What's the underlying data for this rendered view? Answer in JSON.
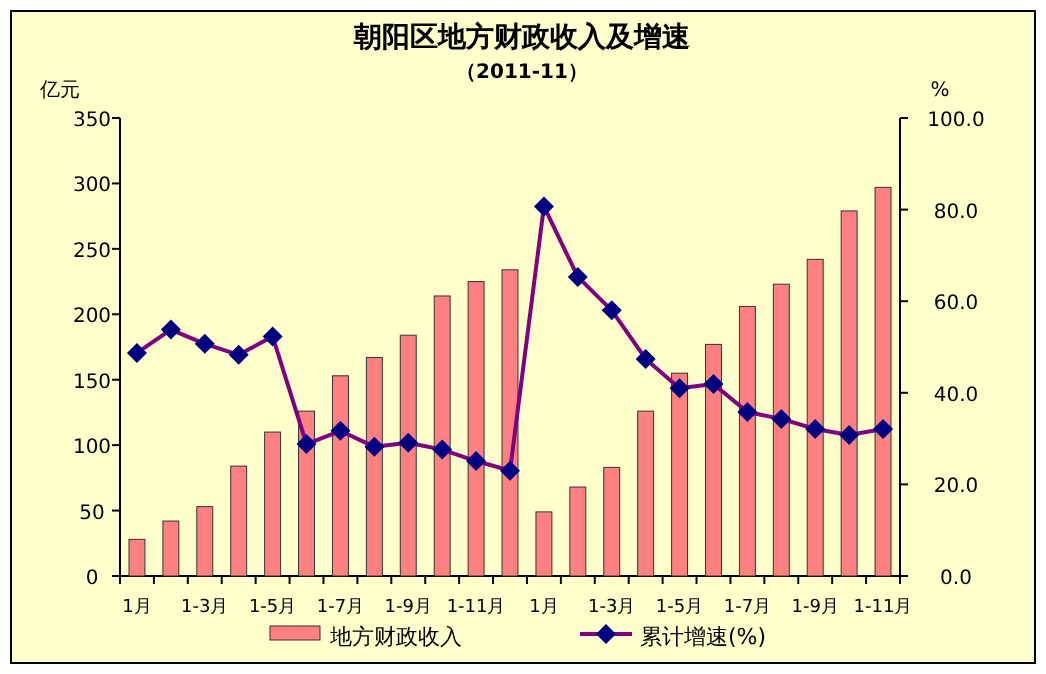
{
  "chart_data": {
    "type": "bar",
    "title": "朝阳区地方财政收入及增速",
    "subtitle": "（2011-11）",
    "ylabel": "亿元",
    "y2label": "%",
    "categories": [
      "1月",
      null,
      "1-3月",
      null,
      "1-5月",
      null,
      "1-7月",
      null,
      "1-9月",
      null,
      "1-11月",
      null,
      "1月",
      null,
      "1-3月",
      null,
      "1-5月",
      null,
      "1-7月",
      null,
      "1-9月",
      null,
      "1-11月"
    ],
    "series": [
      {
        "name": "地方财政收入",
        "color": "#ff8080",
        "values": [
          28,
          42,
          53,
          84,
          110,
          126,
          153,
          167,
          184,
          214,
          225,
          234,
          49,
          68,
          83,
          126,
          155,
          177,
          206,
          223,
          242,
          279,
          297
        ]
      },
      {
        "name": "累计增速(%)",
        "type": "line",
        "axis": "y2",
        "color": "#800080",
        "values": [
          48.7,
          53.8,
          50.7,
          48.3,
          52.3,
          28.8,
          31.7,
          28.2,
          29.1,
          27.6,
          25.1,
          23.0,
          80.7,
          65.3,
          58.0,
          47.4,
          41.0,
          41.9,
          35.8,
          34.3,
          32.1,
          30.8,
          32.1
        ]
      }
    ],
    "ylim": [
      0,
      350
    ],
    "yticks": [
      0,
      50,
      100,
      150,
      200,
      250,
      300,
      350
    ],
    "y2lim": [
      0,
      100
    ],
    "y2ticks": [
      {
        "value": 0,
        "label": "0.0"
      },
      {
        "value": 20,
        "label": "20.0"
      },
      {
        "value": 40,
        "label": "40.0"
      },
      {
        "value": 60,
        "label": "60.0"
      },
      {
        "value": 80,
        "label": "80.0"
      },
      {
        "value": 100,
        "label": "100.0"
      }
    ],
    "legend": "bottom",
    "marker": "diamond",
    "grid": false
  }
}
